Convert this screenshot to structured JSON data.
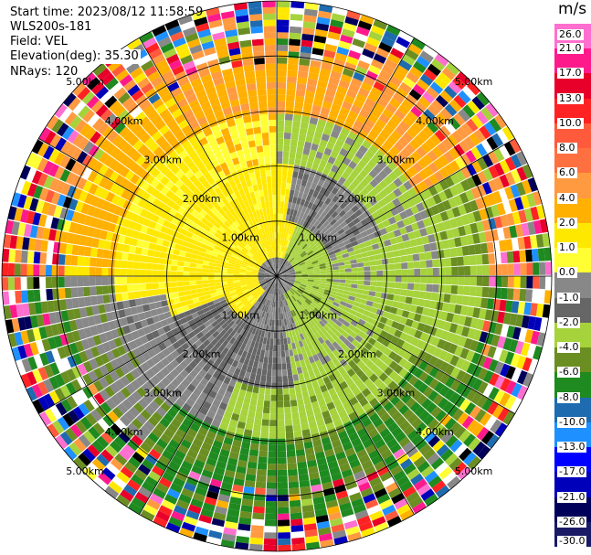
{
  "header": {
    "start_time": "Start time: 2023/08/12 11:58:59",
    "instrument": "WLS200s-181",
    "field": "Field: VEL",
    "elevation": "Elevation(deg): 35.30",
    "nrays": "NRays: 120"
  },
  "colorbar": {
    "unit": "m/s",
    "ticks": [
      "26.0",
      "21.0",
      "17.0",
      "13.0",
      "10.0",
      "8.0",
      "6.0",
      "4.0",
      "2.0",
      "1.0",
      "0.0",
      "-1.0",
      "-2.0",
      "-4.0",
      "-6.0",
      "-8.0",
      "-10.0",
      "-13.0",
      "-17.0",
      "-21.0",
      "-26.0",
      "-30.0"
    ],
    "colors": [
      "#ff6fcf",
      "#ff1a8c",
      "#e8002a",
      "#ff2222",
      "#ff5a3c",
      "#ff7040",
      "#ff9a40",
      "#ffb000",
      "#ffe800",
      "#ffff33",
      "#888888",
      "#666666",
      "#a6d23c",
      "#6b8e23",
      "#1f8a1f",
      "#1e6bb0",
      "#1e90ff",
      "#0000ff",
      "#0000bb",
      "#00005a",
      "#1a1a66"
    ]
  },
  "range_labels": [
    "1.00km",
    "1.00km",
    "2.00km",
    "2.00km",
    "3.00km",
    "3.00km",
    "4.00km",
    "4.00km",
    "5.00km",
    "5.00km",
    "1.00km",
    "1.00km",
    "2.00km",
    "2.00km",
    "3.00km",
    "3.00km",
    "4.00km",
    "4.00km",
    "5.00km",
    "5.00km"
  ],
  "chart_data": {
    "type": "heatmap",
    "projection": "polar PPI",
    "field": "VEL",
    "units": "m/s",
    "range_rings_km": [
      1,
      2,
      3,
      4,
      5
    ],
    "n_rays": 120,
    "elevation_deg": 35.3,
    "color_levels": [
      -30,
      -26,
      -21,
      -17,
      -13,
      -10,
      -8,
      -6,
      -4,
      -2,
      -1,
      0,
      1,
      2,
      4,
      6,
      8,
      10,
      13,
      17,
      21,
      26,
      30
    ]
  }
}
